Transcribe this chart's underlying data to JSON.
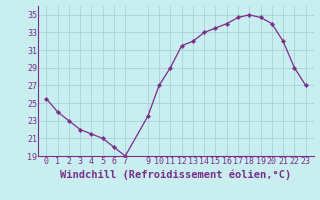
{
  "x": [
    0,
    1,
    2,
    3,
    4,
    5,
    6,
    7,
    9,
    10,
    11,
    12,
    13,
    14,
    15,
    16,
    17,
    18,
    19,
    20,
    21,
    22,
    23
  ],
  "y": [
    25.5,
    24.0,
    23.0,
    22.0,
    21.5,
    21.0,
    20.0,
    19.0,
    23.5,
    27.0,
    29.0,
    31.5,
    32.0,
    33.0,
    33.5,
    34.0,
    34.7,
    35.0,
    34.7,
    34.0,
    32.0,
    29.0,
    27.0
  ],
  "line_color": "#7b2d8b",
  "marker_color": "#7b2d8b",
  "bg_color": "#c8eef0",
  "grid_color": "#a0ccd4",
  "xlabel": "Windchill (Refroidissement éolien,°C)",
  "ylim": [
    19,
    36
  ],
  "yticks": [
    19,
    21,
    23,
    25,
    27,
    29,
    31,
    33,
    35
  ],
  "xticks": [
    0,
    1,
    2,
    3,
    4,
    5,
    6,
    7,
    9,
    10,
    11,
    12,
    13,
    14,
    15,
    16,
    17,
    18,
    19,
    20,
    21,
    22,
    23
  ],
  "tick_fontsize": 6,
  "xlabel_fontsize": 7.5
}
